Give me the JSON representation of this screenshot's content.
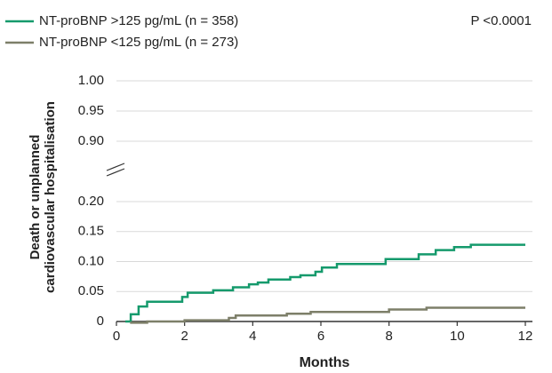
{
  "chart_data": {
    "type": "step",
    "xlabel": "Months",
    "ylabel": [
      "Death or unplanned",
      "cardiovascular hospitalisation"
    ],
    "annotation": "P <0.0001",
    "xlim": [
      0,
      12
    ],
    "xticks": [
      0,
      2,
      4,
      6,
      8,
      10,
      12
    ],
    "ylim": [
      0,
      1
    ],
    "axis_break": [
      0.2,
      0.9
    ],
    "yticks": [
      0,
      0.05,
      {
        "value": 0.1,
        "label": "0.10"
      },
      0.15,
      {
        "value": 0.2,
        "label": "0.20"
      },
      {
        "value": 0.9,
        "label": "0.90"
      },
      0.95,
      {
        "value": 1,
        "label": "1.00"
      }
    ],
    "grid": true,
    "series": [
      {
        "name": "NT-proBNP >125 pg/mL (n = 358)",
        "color": "#159a6c",
        "x": [
          0.26,
          0.42,
          0.65,
          0.9,
          1.93,
          2.09,
          2.84,
          3.42,
          3.89,
          4.15,
          4.46,
          5.1,
          5.4,
          5.84,
          6.03,
          6.47,
          7.9,
          8.87,
          9.37,
          9.91,
          10.4,
          12
        ],
        "values": [
          0,
          0.012,
          0.025,
          0.033,
          0.041,
          0.048,
          0.052,
          0.057,
          0.062,
          0.065,
          0.07,
          0.074,
          0.077,
          0.083,
          0.09,
          0.096,
          0.104,
          0.112,
          0.119,
          0.124,
          0.128,
          0.128
        ]
      },
      {
        "name": "NT-proBNP <125 pg/mL (n = 273)",
        "color": "#7d7f69",
        "x": [
          0.4,
          0.9,
          2.0,
          3.3,
          3.5,
          5.0,
          5.7,
          8.0,
          9.1,
          12
        ],
        "values": [
          -0.002,
          0.0,
          0.002,
          0.006,
          0.01,
          0.013,
          0.016,
          0.02,
          0.023,
          0.023
        ]
      }
    ]
  }
}
